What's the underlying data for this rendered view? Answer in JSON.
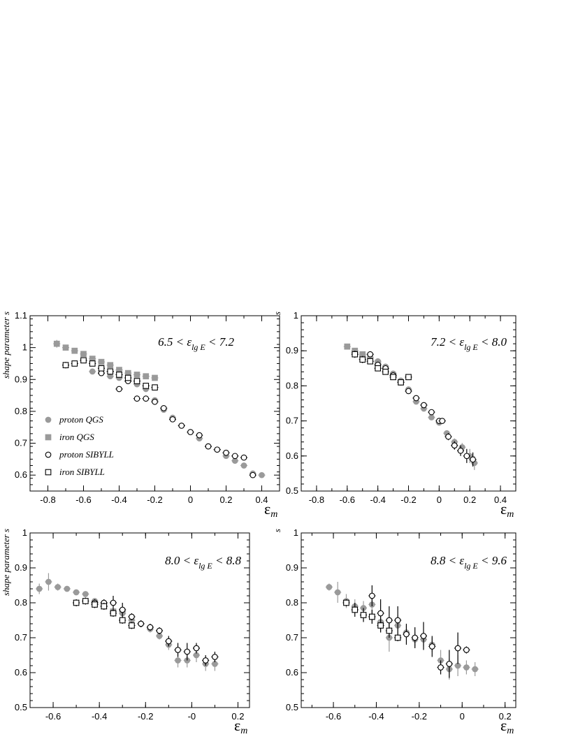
{
  "colors": {
    "qgs": "#9a9a9a",
    "sibyll": "#000000"
  },
  "legend": [
    {
      "label": "proton QGS",
      "marker": "circle-filled"
    },
    {
      "label": "iron QGS",
      "marker": "square-filled"
    },
    {
      "label": "proton SIBYLL",
      "marker": "circle-open"
    },
    {
      "label": "iron SIBYLL",
      "marker": "square-open"
    }
  ],
  "chart_data": [
    {
      "type": "scatter",
      "ylabel": "shape parameter s",
      "xlabel": "ε",
      "xlabel_sub": "m",
      "range_label": "6.5 < ε",
      "range_sub": "lg E",
      "range_tail": " < 7.2",
      "xlim": [
        -0.9,
        0.5
      ],
      "ylim": [
        0.55,
        1.1
      ],
      "xticks": [
        "-0.8",
        "-0.6",
        "-0.4",
        "-0.2",
        "0",
        "0.2",
        "0.4"
      ],
      "yticks": [
        "0.6",
        "0.7",
        "0.8",
        "0.9",
        "1",
        "1.1"
      ],
      "has_legend": true,
      "series": [
        {
          "name": "proton QGS",
          "marker": "circle-filled",
          "x": [
            -0.55,
            -0.5,
            -0.45,
            -0.4,
            -0.35,
            -0.3,
            -0.25,
            -0.2,
            -0.15,
            -0.1,
            -0.05,
            0.0,
            0.05,
            0.1,
            0.15,
            0.2,
            0.25,
            0.3,
            0.35,
            0.4
          ],
          "y": [
            0.925,
            0.92,
            0.91,
            0.905,
            0.895,
            0.885,
            0.87,
            0.835,
            0.805,
            0.78,
            0.755,
            0.735,
            0.715,
            0.69,
            0.68,
            0.66,
            0.645,
            0.63,
            0.605,
            0.6
          ],
          "err": [
            0.004,
            0.004,
            0.004,
            0.004,
            0.004,
            0.004,
            0.004,
            0.004,
            0.004,
            0.004,
            0.004,
            0.004,
            0.004,
            0.004,
            0.004,
            0.004,
            0.004,
            0.004,
            0.004,
            0.004
          ]
        },
        {
          "name": "iron QGS",
          "marker": "square-filled",
          "x": [
            -0.75,
            -0.7,
            -0.65,
            -0.6,
            -0.55,
            -0.5,
            -0.45,
            -0.4,
            -0.35,
            -0.3,
            -0.25,
            -0.2
          ],
          "y": [
            1.012,
            1.0,
            0.99,
            0.98,
            0.965,
            0.955,
            0.945,
            0.93,
            0.92,
            0.915,
            0.91,
            0.905
          ],
          "err": [
            0.012,
            0.004,
            0.004,
            0.004,
            0.004,
            0.004,
            0.004,
            0.004,
            0.004,
            0.004,
            0.004,
            0.004
          ]
        },
        {
          "name": "proton SIBYLL",
          "marker": "circle-open",
          "x": [
            -0.5,
            -0.45,
            -0.4,
            -0.35,
            -0.3,
            -0.25,
            -0.2,
            -0.15,
            -0.1,
            -0.05,
            0.0,
            0.05,
            0.1,
            0.15,
            0.2,
            0.25,
            0.3,
            0.35
          ],
          "y": [
            0.92,
            0.925,
            0.87,
            0.895,
            0.84,
            0.84,
            0.83,
            0.81,
            0.775,
            0.755,
            0.735,
            0.725,
            0.69,
            0.68,
            0.67,
            0.66,
            0.655,
            0.6
          ],
          "err": [
            0.004,
            0.004,
            0.004,
            0.004,
            0.004,
            0.004,
            0.004,
            0.004,
            0.004,
            0.004,
            0.004,
            0.004,
            0.004,
            0.004,
            0.004,
            0.004,
            0.004,
            0.004
          ]
        },
        {
          "name": "iron SIBYLL",
          "marker": "square-open",
          "x": [
            -0.7,
            -0.65,
            -0.6,
            -0.55,
            -0.5,
            -0.45,
            -0.4,
            -0.35,
            -0.3,
            -0.25,
            -0.2
          ],
          "y": [
            0.945,
            0.95,
            0.96,
            0.95,
            0.935,
            0.925,
            0.915,
            0.905,
            0.895,
            0.88,
            0.875
          ],
          "err": [
            0.01,
            0.006,
            0.006,
            0.006,
            0.006,
            0.006,
            0.006,
            0.006,
            0.006,
            0.006,
            0.006
          ]
        }
      ]
    },
    {
      "type": "scatter",
      "ylabel": "s",
      "xlabel": "ε",
      "xlabel_sub": "m",
      "range_label": "7.2 < ε",
      "range_sub": "lg E",
      "range_tail": " < 8.0",
      "xlim": [
        -0.9,
        0.5
      ],
      "ylim": [
        0.5,
        1.0
      ],
      "xticks": [
        "-0.8",
        "-0.6",
        "-0.4",
        "-0.2",
        "0",
        "0.2",
        "0.4"
      ],
      "yticks": [
        "0.5",
        "0.6",
        "0.7",
        "0.8",
        "0.9",
        "1"
      ],
      "has_legend": false,
      "series": [
        {
          "name": "proton QGS",
          "marker": "circle-filled",
          "x": [
            -0.55,
            -0.5,
            -0.45,
            -0.4,
            -0.35,
            -0.3,
            -0.25,
            -0.2,
            -0.15,
            -0.1,
            -0.05,
            0.0,
            0.05,
            0.1,
            0.15,
            0.2,
            0.23
          ],
          "y": [
            0.895,
            0.885,
            0.88,
            0.87,
            0.855,
            0.835,
            0.815,
            0.79,
            0.755,
            0.735,
            0.71,
            0.695,
            0.665,
            0.64,
            0.625,
            0.6,
            0.58
          ],
          "err": [
            0.006,
            0.006,
            0.006,
            0.006,
            0.006,
            0.006,
            0.006,
            0.006,
            0.006,
            0.006,
            0.006,
            0.006,
            0.006,
            0.01,
            0.012,
            0.02,
            0.02
          ]
        },
        {
          "name": "iron QGS",
          "marker": "square-filled",
          "x": [
            -0.6,
            -0.55,
            -0.5,
            -0.45,
            -0.4,
            -0.35,
            -0.3,
            -0.25
          ],
          "y": [
            0.912,
            0.9,
            0.89,
            0.88,
            0.865,
            0.85,
            0.83,
            0.81
          ],
          "err": [
            0.006,
            0.006,
            0.006,
            0.006,
            0.006,
            0.006,
            0.006,
            0.006
          ]
        },
        {
          "name": "proton SIBYLL",
          "marker": "circle-open",
          "x": [
            -0.45,
            -0.4,
            -0.35,
            -0.3,
            -0.25,
            -0.2,
            -0.15,
            -0.1,
            -0.05,
            0.0,
            0.02,
            0.06,
            0.1,
            0.14,
            0.18,
            0.22
          ],
          "y": [
            0.89,
            0.86,
            0.85,
            0.83,
            0.81,
            0.785,
            0.765,
            0.745,
            0.725,
            0.7,
            0.7,
            0.655,
            0.63,
            0.615,
            0.6,
            0.59
          ],
          "err": [
            0.006,
            0.006,
            0.006,
            0.006,
            0.006,
            0.006,
            0.006,
            0.006,
            0.006,
            0.006,
            0.006,
            0.01,
            0.012,
            0.015,
            0.02,
            0.02
          ]
        },
        {
          "name": "iron SIBYLL",
          "marker": "square-open",
          "x": [
            -0.55,
            -0.5,
            -0.45,
            -0.4,
            -0.35,
            -0.3,
            -0.25,
            -0.2
          ],
          "y": [
            0.89,
            0.875,
            0.87,
            0.85,
            0.84,
            0.825,
            0.81,
            0.825
          ],
          "err": [
            0.01,
            0.01,
            0.008,
            0.008,
            0.008,
            0.008,
            0.008,
            0.008
          ]
        }
      ]
    },
    {
      "type": "scatter",
      "ylabel": "shape parameter s",
      "xlabel": "ε",
      "xlabel_sub": "m",
      "range_label": "8.0 < ε",
      "range_sub": "lg E",
      "range_tail": " < 8.8",
      "xlim": [
        -0.7,
        0.25
      ],
      "ylim": [
        0.5,
        1.0
      ],
      "xticks": [
        "-0.6",
        "-0.4",
        "-0.2",
        "-0",
        "0.2"
      ],
      "yticks": [
        "0.5",
        "0.6",
        "0.7",
        "0.8",
        "0.9",
        "1"
      ],
      "has_legend": false,
      "series": [
        {
          "name": "proton QGS",
          "marker": "circle-filled",
          "x": [
            -0.66,
            -0.62,
            -0.58,
            -0.54,
            -0.5,
            -0.46,
            -0.42,
            -0.38,
            -0.34,
            -0.3,
            -0.26,
            -0.22,
            -0.18,
            -0.14,
            -0.1,
            -0.06,
            -0.02,
            0.02,
            0.06,
            0.1
          ],
          "y": [
            0.84,
            0.86,
            0.845,
            0.84,
            0.83,
            0.825,
            0.805,
            0.79,
            0.775,
            0.77,
            0.75,
            0.74,
            0.725,
            0.705,
            0.68,
            0.635,
            0.635,
            0.65,
            0.625,
            0.625
          ],
          "err": [
            0.015,
            0.025,
            0.01,
            0.008,
            0.008,
            0.008,
            0.008,
            0.008,
            0.01,
            0.01,
            0.01,
            0.01,
            0.01,
            0.01,
            0.015,
            0.02,
            0.02,
            0.02,
            0.02,
            0.02
          ]
        },
        {
          "name": "iron QGS",
          "marker": "square-filled",
          "x": [
            -0.38,
            -0.34,
            -0.3
          ],
          "y": [
            0.79,
            0.775,
            0.775
          ],
          "err": [
            0.008,
            0.008,
            0.008
          ]
        },
        {
          "name": "proton SIBYLL",
          "marker": "circle-open",
          "x": [
            -0.42,
            -0.38,
            -0.34,
            -0.3,
            -0.26,
            -0.22,
            -0.18,
            -0.14,
            -0.1,
            -0.06,
            -0.02,
            0.02,
            0.06,
            0.1
          ],
          "y": [
            0.8,
            0.8,
            0.8,
            0.78,
            0.76,
            0.74,
            0.73,
            0.72,
            0.69,
            0.665,
            0.66,
            0.67,
            0.635,
            0.645
          ],
          "err": [
            0.01,
            0.01,
            0.02,
            0.02,
            0.01,
            0.01,
            0.01,
            0.01,
            0.015,
            0.02,
            0.025,
            0.015,
            0.015,
            0.015
          ]
        },
        {
          "name": "iron SIBYLL",
          "marker": "square-open",
          "x": [
            -0.5,
            -0.46,
            -0.42,
            -0.38,
            -0.34,
            -0.3,
            -0.26
          ],
          "y": [
            0.8,
            0.805,
            0.795,
            0.79,
            0.77,
            0.75,
            0.735
          ],
          "err": [
            0.01,
            0.01,
            0.01,
            0.01,
            0.01,
            0.01,
            0.01
          ]
        }
      ]
    },
    {
      "type": "scatter",
      "ylabel": "s",
      "xlabel": "ε",
      "xlabel_sub": "m",
      "range_label": "8.8 < ε",
      "range_sub": "lg E",
      "range_tail": " < 9.6",
      "xlim": [
        -0.75,
        0.25
      ],
      "ylim": [
        0.5,
        1.0
      ],
      "xticks": [
        "-0.6",
        "-0.4",
        "-0.2",
        "0",
        "0.2"
      ],
      "yticks": [
        "0.5",
        "0.6",
        "0.7",
        "0.8",
        "0.9",
        "1"
      ],
      "has_legend": false,
      "series": [
        {
          "name": "proton QGS",
          "marker": "circle-filled",
          "x": [
            -0.62,
            -0.58,
            -0.54,
            -0.5,
            -0.46,
            -0.42,
            -0.38,
            -0.34,
            -0.3,
            -0.26,
            -0.22,
            -0.18,
            -0.14,
            -0.1,
            -0.06,
            -0.02,
            0.02,
            0.06
          ],
          "y": [
            0.845,
            0.83,
            0.805,
            0.79,
            0.785,
            0.795,
            0.745,
            0.7,
            0.735,
            0.715,
            0.695,
            0.695,
            0.68,
            0.635,
            0.61,
            0.62,
            0.615,
            0.61
          ],
          "err": [
            0.01,
            0.03,
            0.02,
            0.02,
            0.02,
            0.03,
            0.03,
            0.04,
            0.03,
            0.02,
            0.02,
            0.02,
            0.02,
            0.03,
            0.03,
            0.03,
            0.02,
            0.02
          ]
        },
        {
          "name": "iron QGS",
          "marker": "square-filled",
          "x": [
            -0.42,
            -0.38
          ],
          "y": [
            0.76,
            0.74
          ],
          "err": [
            0.02,
            0.02
          ]
        },
        {
          "name": "proton SIBYLL",
          "marker": "circle-open",
          "x": [
            -0.42,
            -0.38,
            -0.34,
            -0.3,
            -0.26,
            -0.22,
            -0.18,
            -0.14,
            -0.1,
            -0.06,
            -0.02,
            0.02
          ],
          "y": [
            0.82,
            0.77,
            0.75,
            0.75,
            0.71,
            0.7,
            0.705,
            0.675,
            0.615,
            0.625,
            0.67,
            0.665
          ],
          "err": [
            0.03,
            0.04,
            0.04,
            0.04,
            0.03,
            0.03,
            0.04,
            0.03,
            0.02,
            0.04,
            0.045,
            0.01
          ]
        },
        {
          "name": "iron SIBYLL",
          "marker": "square-open",
          "x": [
            -0.54,
            -0.5,
            -0.46,
            -0.42,
            -0.38,
            -0.34,
            -0.3
          ],
          "y": [
            0.8,
            0.78,
            0.765,
            0.76,
            0.735,
            0.72,
            0.7
          ],
          "err": [
            0.01,
            0.02,
            0.02,
            0.02,
            0.02,
            0.02,
            0.01
          ]
        }
      ]
    }
  ]
}
